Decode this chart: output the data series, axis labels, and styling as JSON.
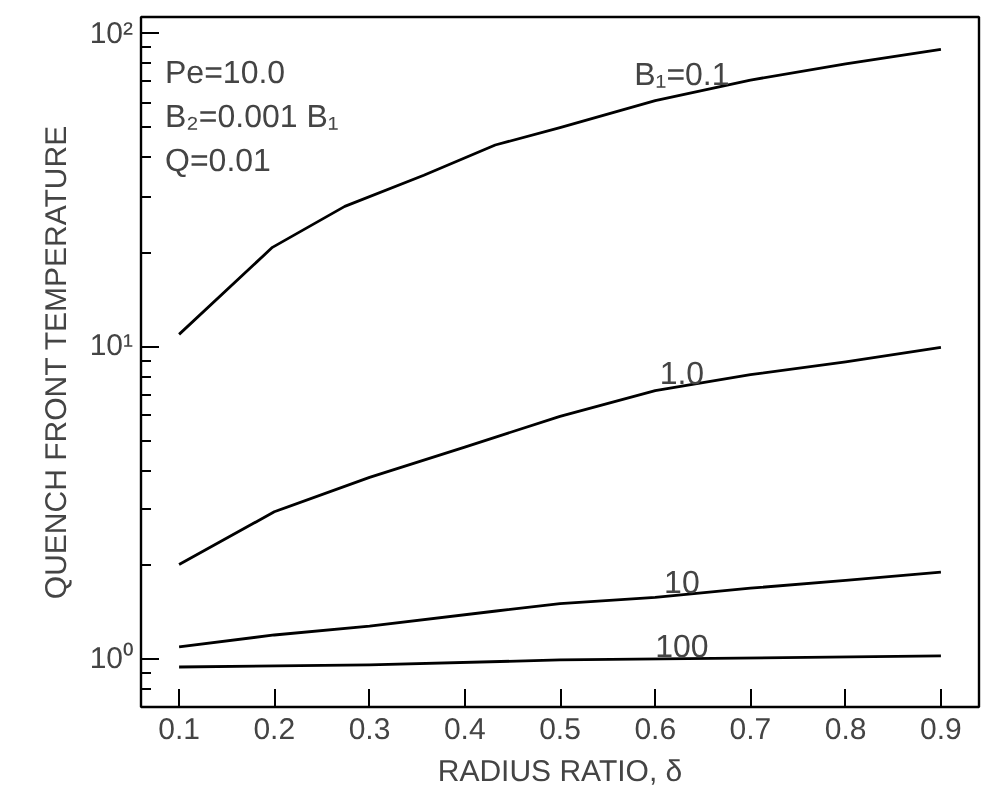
{
  "chart_data": {
    "type": "line",
    "xlabel": "RADIUS RATIO, δ",
    "ylabel": "QUENCH FRONT TEMPERATURE",
    "log": "y",
    "grid": false,
    "legend": false,
    "line_style": "solid",
    "marker": "none",
    "xlim": [
      0.06,
      0.94
    ],
    "ylim": [
      0.7,
      113
    ],
    "xticks": [
      0.1,
      0.2,
      0.3,
      0.4,
      0.5,
      0.6,
      0.7,
      0.8,
      0.9
    ],
    "yticks": [
      {
        "value": 1,
        "label": "10⁰"
      },
      {
        "value": 10,
        "label": "10¹"
      },
      {
        "value": 100,
        "label": "10²"
      }
    ],
    "series": [
      {
        "name": "B₁=0.1",
        "color": "#000000",
        "x": [
          0.1,
          0.198,
          0.274,
          0.357,
          0.432,
          0.5,
          0.6,
          0.7,
          0.8,
          0.9
        ],
        "values": [
          10.9,
          20.7,
          28.0,
          35.2,
          44,
          50,
          61,
          71,
          80,
          89
        ]
      },
      {
        "name": "1.0",
        "color": "#000000",
        "x": [
          0.1,
          0.2,
          0.3,
          0.4,
          0.5,
          0.6,
          0.7,
          0.8,
          0.9
        ],
        "values": [
          2.0,
          2.95,
          3.8,
          4.75,
          5.96,
          7.2,
          8.1,
          8.9,
          9.9
        ]
      },
      {
        "name": "10",
        "color": "#000000",
        "x": [
          0.1,
          0.2,
          0.3,
          0.433,
          0.5,
          0.6,
          0.7,
          0.8,
          0.9
        ],
        "values": [
          1.09,
          1.19,
          1.27,
          1.42,
          1.5,
          1.57,
          1.68,
          1.78,
          1.89
        ]
      },
      {
        "name": "100",
        "color": "#000000",
        "x": [
          0.1,
          0.3,
          0.5,
          0.9
        ],
        "values": [
          0.94,
          0.955,
          0.99,
          1.02
        ]
      }
    ],
    "annotations": [
      "Pe=10.0",
      "B₂=0.001 B₁",
      "Q=0.01"
    ]
  }
}
